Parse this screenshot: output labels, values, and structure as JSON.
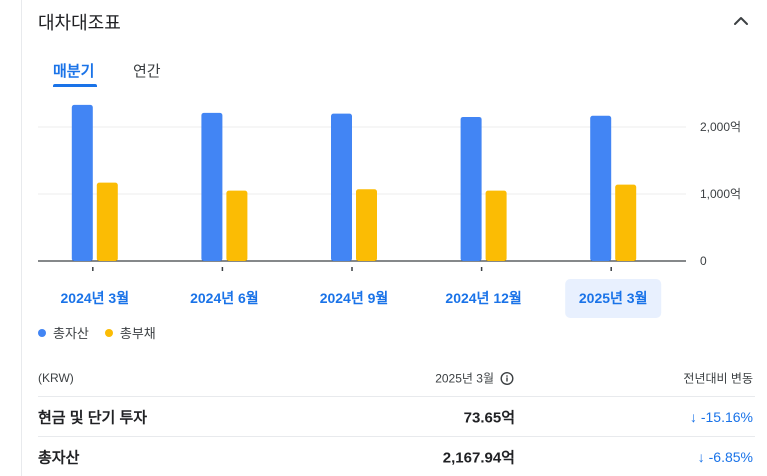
{
  "header": {
    "title": "대차대조표"
  },
  "tabs": [
    {
      "label": "매분기",
      "active": true
    },
    {
      "label": "연간",
      "active": false
    }
  ],
  "colors": {
    "total_assets": "#4285f4",
    "total_liabilities": "#fbbc04",
    "accent": "#1a73e8",
    "selected_bg": "#e8f0fe"
  },
  "chart_data": {
    "type": "bar",
    "categories": [
      "2024년 3월",
      "2024년 6월",
      "2024년 9월",
      "2024년 12월",
      "2025년 3월"
    ],
    "selected_category": "2025년 3월",
    "series": [
      {
        "name": "총자산",
        "values": [
          2330,
          2210,
          2200,
          2150,
          2168
        ]
      },
      {
        "name": "총부채",
        "values": [
          1170,
          1050,
          1070,
          1050,
          1140
        ]
      }
    ],
    "ylim": [
      0,
      2400
    ],
    "yticks": [
      {
        "value": 0,
        "label": "0"
      },
      {
        "value": 1000,
        "label": "1,000억"
      },
      {
        "value": 2000,
        "label": "2,000억"
      }
    ],
    "grid": true,
    "legend_position": "bottom-left"
  },
  "legend": {
    "total_assets": "총자산",
    "total_liabilities": "총부채"
  },
  "table": {
    "currency": "(KRW)",
    "period_header": "2025년 3월",
    "change_header": "전년대비 변동",
    "rows": [
      {
        "label": "현금 및 단기 투자",
        "value": "73.65억",
        "change": "↓ -15.16%"
      },
      {
        "label": "총자산",
        "value": "2,167.94억",
        "change": "↓ -6.85%"
      }
    ]
  }
}
